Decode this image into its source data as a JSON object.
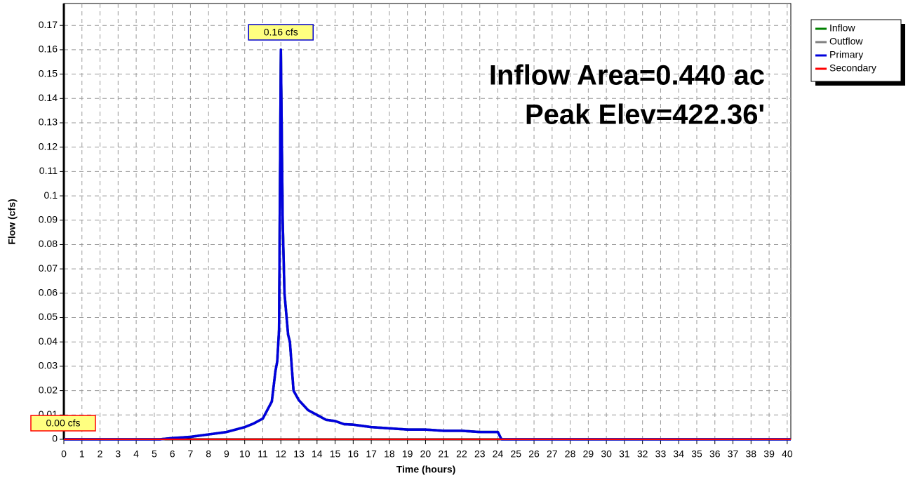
{
  "chart_data": {
    "type": "line",
    "ylabel": "Flow  (cfs)",
    "xlabel": "Time  (hours)",
    "annotations": [
      "Inflow Area=0.440 ac",
      "Peak Elev=422.36'"
    ],
    "value_labels": [
      {
        "x": 12.0,
        "value": 0.16,
        "label": "0.16 cfs"
      },
      {
        "x": 0,
        "value": 0,
        "label": "0.00 cfs"
      }
    ],
    "xlim": [
      0,
      40.2
    ],
    "ylim": [
      0,
      0.179
    ],
    "xticks": [
      0,
      1,
      2,
      3,
      4,
      5,
      6,
      7,
      8,
      9,
      10,
      11,
      12,
      13,
      14,
      15,
      16,
      17,
      18,
      19,
      20,
      21,
      22,
      23,
      24,
      25,
      26,
      27,
      28,
      29,
      30,
      31,
      32,
      33,
      34,
      35,
      36,
      37,
      38,
      39,
      40
    ],
    "yticks": [
      0,
      0.01,
      0.02,
      0.03,
      0.04,
      0.05,
      0.06,
      0.07,
      0.08,
      0.09,
      0.1,
      0.11,
      0.12,
      0.13,
      0.14,
      0.15,
      0.16,
      0.17
    ],
    "grid": true,
    "legend": "upper right",
    "x": [
      0,
      5.3,
      6,
      7,
      8,
      9,
      10,
      10.5,
      11,
      11.5,
      11.7,
      11.8,
      11.9,
      12.0,
      12.1,
      12.2,
      12.4,
      12.5,
      12.7,
      13,
      13.5,
      14,
      14.5,
      15,
      15.5,
      16,
      16.5,
      17,
      18,
      19,
      20,
      21,
      22,
      23,
      24,
      24.2,
      40.2
    ],
    "series": [
      {
        "name": "Inflow",
        "color": "#008000",
        "values": [
          0,
          0,
          0.0005,
          0.001,
          0.002,
          0.003,
          0.005,
          0.0065,
          0.0085,
          0.0155,
          0.028,
          0.032,
          0.045,
          0.16,
          0.09,
          0.06,
          0.043,
          0.04,
          0.02,
          0.016,
          0.012,
          0.01,
          0.008,
          0.0075,
          0.0062,
          0.006,
          0.0055,
          0.005,
          0.0045,
          0.004,
          0.004,
          0.0035,
          0.0035,
          0.003,
          0.003,
          0,
          0
        ]
      },
      {
        "name": "Outflow",
        "color": "#808080",
        "values": [
          0,
          0,
          0.0005,
          0.001,
          0.002,
          0.003,
          0.005,
          0.0065,
          0.0085,
          0.0155,
          0.028,
          0.032,
          0.045,
          0.16,
          0.09,
          0.06,
          0.043,
          0.04,
          0.02,
          0.016,
          0.012,
          0.01,
          0.008,
          0.0075,
          0.0062,
          0.006,
          0.0055,
          0.005,
          0.0045,
          0.004,
          0.004,
          0.0035,
          0.0035,
          0.003,
          0.003,
          0,
          0
        ]
      },
      {
        "name": "Primary",
        "color": "#0000dd",
        "values": [
          0,
          0,
          0.0005,
          0.001,
          0.002,
          0.003,
          0.005,
          0.0065,
          0.0085,
          0.0155,
          0.028,
          0.032,
          0.045,
          0.16,
          0.09,
          0.06,
          0.043,
          0.04,
          0.02,
          0.016,
          0.012,
          0.01,
          0.008,
          0.0075,
          0.0062,
          0.006,
          0.0055,
          0.005,
          0.0045,
          0.004,
          0.004,
          0.0035,
          0.0035,
          0.003,
          0.003,
          0,
          0
        ]
      },
      {
        "name": "Secondary",
        "color": "#ff0000",
        "values": [
          0,
          0,
          0,
          0,
          0,
          0,
          0,
          0,
          0,
          0,
          0,
          0,
          0,
          0,
          0,
          0,
          0,
          0,
          0,
          0,
          0,
          0,
          0,
          0,
          0,
          0,
          0,
          0,
          0,
          0,
          0,
          0,
          0,
          0,
          0,
          0,
          0
        ]
      }
    ]
  }
}
